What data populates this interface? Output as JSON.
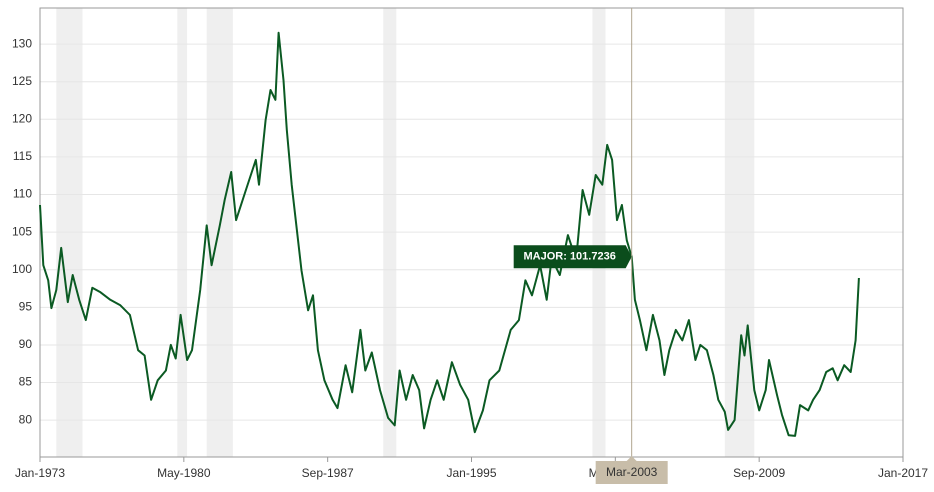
{
  "chart_data": {
    "type": "line",
    "series": [
      {
        "name": "MAJOR",
        "color": "#0b5a23",
        "x": [
          "1973-01",
          "1973-03",
          "1973-06",
          "1973-08",
          "1973-11",
          "1974-02",
          "1974-06",
          "1974-09",
          "1975-01",
          "1975-05",
          "1975-09",
          "1976-02",
          "1976-08",
          "1977-02",
          "1977-08",
          "1978-01",
          "1978-05",
          "1978-09",
          "1979-01",
          "1979-06",
          "1979-09",
          "1979-12",
          "1980-03",
          "1980-07",
          "1980-10",
          "1981-03",
          "1981-07",
          "1981-10",
          "1982-03",
          "1982-06",
          "1982-10",
          "1983-01",
          "1983-07",
          "1984-01",
          "1984-03",
          "1984-07",
          "1984-10",
          "1985-01",
          "1985-03",
          "1985-06",
          "1985-08",
          "1985-11",
          "1986-05",
          "1986-09",
          "1986-12",
          "1987-03",
          "1987-07",
          "1987-12",
          "1988-03",
          "1988-08",
          "1988-12",
          "1989-05",
          "1989-08",
          "1989-12",
          "1990-05",
          "1990-10",
          "1991-02",
          "1991-05",
          "1991-09",
          "1992-01",
          "1992-05",
          "1992-08",
          "1992-12",
          "1993-04",
          "1993-08",
          "1994-01",
          "1994-06",
          "1994-11",
          "1995-03",
          "1995-08",
          "1995-12",
          "1996-06",
          "1997-01",
          "1997-06",
          "1997-10",
          "1998-02",
          "1998-07",
          "1998-11",
          "1999-02",
          "1999-07",
          "1999-12",
          "2000-05",
          "2000-09",
          "2001-01",
          "2001-05",
          "2001-09",
          "2001-12",
          "2002-03",
          "2002-06",
          "2002-09",
          "2002-12",
          "2003-03",
          "2003-05",
          "2003-08",
          "2003-12",
          "2004-04",
          "2004-08",
          "2004-11",
          "2005-02",
          "2005-06",
          "2005-10",
          "2006-02",
          "2006-06",
          "2006-09",
          "2007-01",
          "2007-05",
          "2007-08",
          "2007-12",
          "2008-02",
          "2008-06",
          "2008-10",
          "2008-12",
          "2009-02",
          "2009-06",
          "2009-09",
          "2010-01",
          "2010-03",
          "2010-08",
          "2010-11",
          "2011-03",
          "2011-07",
          "2011-10",
          "2012-03",
          "2012-06",
          "2012-10",
          "2013-02",
          "2013-06",
          "2013-09",
          "2014-01",
          "2014-05",
          "2014-08",
          "2014-10"
        ],
        "values": [
          108.6,
          100.6,
          98.6,
          94.9,
          97.3,
          102.9,
          95.7,
          99.3,
          96.0,
          93.3,
          97.6,
          97.0,
          96.0,
          95.3,
          94.0,
          89.3,
          88.6,
          82.7,
          85.3,
          86.6,
          90.0,
          88.2,
          94.0,
          88.0,
          89.3,
          97.3,
          105.9,
          100.6,
          105.9,
          109.3,
          113.0,
          106.6,
          110.6,
          114.6,
          111.3,
          119.9,
          123.9,
          122.6,
          131.5,
          125.2,
          118.6,
          111.3,
          99.9,
          94.6,
          96.6,
          89.3,
          85.3,
          82.7,
          81.6,
          87.3,
          83.7,
          92.0,
          86.6,
          89.0,
          84.0,
          80.3,
          79.3,
          86.6,
          82.7,
          86.0,
          84.0,
          78.9,
          82.7,
          85.3,
          82.7,
          87.7,
          84.7,
          82.7,
          78.4,
          81.3,
          85.3,
          86.6,
          92.0,
          93.3,
          98.6,
          96.6,
          100.6,
          96.0,
          101.5,
          99.3,
          104.6,
          101.3,
          110.6,
          107.3,
          112.6,
          111.3,
          116.6,
          114.6,
          106.6,
          108.6,
          103.9,
          101.7236,
          96.0,
          93.3,
          89.3,
          94.0,
          90.6,
          86.0,
          89.3,
          92.0,
          90.6,
          93.3,
          88.0,
          90.0,
          89.3,
          86.0,
          82.7,
          81.1,
          78.7,
          80.0,
          91.3,
          88.6,
          92.6,
          84.0,
          81.3,
          84.0,
          88.0,
          83.3,
          80.7,
          78.0,
          77.9,
          82.0,
          81.3,
          82.7,
          84.0,
          86.4,
          86.9,
          85.3,
          87.3,
          86.4,
          90.6,
          98.9
        ]
      }
    ],
    "xlim": [
      "1973-01",
      "2017-01"
    ],
    "xticks": [
      {
        "value": "1973-01",
        "label": "Jan-1973"
      },
      {
        "value": "1980-05",
        "label": "May-1980"
      },
      {
        "value": "1987-09",
        "label": "Sep-1987"
      },
      {
        "value": "1995-01",
        "label": "Jan-1995"
      },
      {
        "value": "2002-05",
        "label": "May-2002"
      },
      {
        "value": "2009-09",
        "label": "Sep-2009"
      },
      {
        "value": "2017-01",
        "label": "Jan-2017"
      }
    ],
    "ylim": [
      75.1,
      134.8
    ],
    "yticks": [
      80,
      85,
      90,
      95,
      100,
      105,
      110,
      115,
      120,
      125,
      130
    ],
    "grid": true,
    "recessions": [
      [
        "1973-11",
        "1975-03"
      ],
      [
        "1980-01",
        "1980-07"
      ],
      [
        "1981-07",
        "1982-11"
      ],
      [
        "1990-07",
        "1991-03"
      ],
      [
        "2001-03",
        "2001-11"
      ],
      [
        "2007-12",
        "2009-06"
      ]
    ],
    "tooltip": {
      "x": "2003-03",
      "x_label": "Mar-2003",
      "value": 101.7236,
      "label": "MAJOR: 101.7236"
    }
  }
}
